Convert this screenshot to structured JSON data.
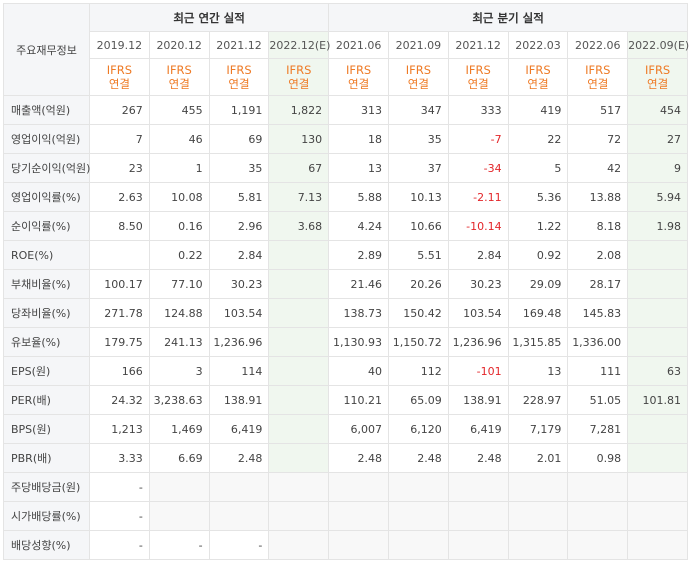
{
  "table": {
    "label_header": "주요재무정보",
    "groups": [
      {
        "label": "최근 연간 실적"
      },
      {
        "label": "최근 분기 실적"
      }
    ],
    "periods": [
      "2019.12",
      "2020.12",
      "2021.12",
      "2022.12(E)",
      "2021.06",
      "2021.09",
      "2021.12",
      "2022.03",
      "2022.06",
      "2022.09(E)"
    ],
    "ifrs_line1": "IFRS",
    "ifrs_line2": "연결",
    "rows": [
      {
        "label": "매출액(억원)",
        "values": [
          "267",
          "455",
          "1,191",
          "1,822",
          "313",
          "347",
          "333",
          "419",
          "517",
          "454"
        ]
      },
      {
        "label": "영업이익(억원)",
        "values": [
          "7",
          "46",
          "69",
          "130",
          "18",
          "35",
          "-7",
          "22",
          "72",
          "27"
        ]
      },
      {
        "label": "당기순이익(억원)",
        "values": [
          "23",
          "1",
          "35",
          "67",
          "13",
          "37",
          "-34",
          "5",
          "42",
          "9"
        ]
      },
      {
        "label": "영업이익률(%)",
        "values": [
          "2.63",
          "10.08",
          "5.81",
          "7.13",
          "5.88",
          "10.13",
          "-2.11",
          "5.36",
          "13.88",
          "5.94"
        ]
      },
      {
        "label": "순이익률(%)",
        "values": [
          "8.50",
          "0.16",
          "2.96",
          "3.68",
          "4.24",
          "10.66",
          "-10.14",
          "1.22",
          "8.18",
          "1.98"
        ]
      },
      {
        "label": "ROE(%)",
        "values": [
          "",
          "0.22",
          "2.84",
          "",
          "2.89",
          "5.51",
          "2.84",
          "0.92",
          "2.08",
          ""
        ]
      },
      {
        "label": "부채비율(%)",
        "values": [
          "100.17",
          "77.10",
          "30.23",
          "",
          "21.46",
          "20.26",
          "30.23",
          "29.09",
          "28.17",
          ""
        ]
      },
      {
        "label": "당좌비율(%)",
        "values": [
          "271.78",
          "124.88",
          "103.54",
          "",
          "138.73",
          "150.42",
          "103.54",
          "169.48",
          "145.83",
          ""
        ]
      },
      {
        "label": "유보율(%)",
        "values": [
          "179.75",
          "241.13",
          "1,236.96",
          "",
          "1,130.93",
          "1,150.72",
          "1,236.96",
          "1,315.85",
          "1,336.00",
          ""
        ]
      },
      {
        "label": "EPS(원)",
        "values": [
          "166",
          "3",
          "114",
          "",
          "40",
          "112",
          "-101",
          "13",
          "111",
          "63"
        ]
      },
      {
        "label": "PER(배)",
        "values": [
          "24.32",
          "3,238.63",
          "138.91",
          "",
          "110.21",
          "65.09",
          "138.91",
          "228.97",
          "51.05",
          "101.81"
        ]
      },
      {
        "label": "BPS(원)",
        "values": [
          "1,213",
          "1,469",
          "6,419",
          "",
          "6,007",
          "6,120",
          "6,419",
          "7,179",
          "7,281",
          ""
        ]
      },
      {
        "label": "PBR(배)",
        "values": [
          "3.33",
          "6.69",
          "2.48",
          "",
          "2.48",
          "2.48",
          "2.48",
          "2.01",
          "0.98",
          ""
        ]
      },
      {
        "label": "주당배당금(원)",
        "values": [
          "-",
          "",
          "",
          "",
          "",
          "",
          "",
          "",
          "",
          ""
        ]
      },
      {
        "label": "시가배당률(%)",
        "values": [
          "-",
          "",
          "",
          "",
          "",
          "",
          "",
          "",
          "",
          ""
        ]
      },
      {
        "label": "배당성향(%)",
        "values": [
          "-",
          "-",
          "-",
          "",
          "",
          "",
          "",
          "",
          "",
          ""
        ]
      }
    ]
  },
  "colors": {
    "header_bg": "#f5f6f8",
    "estimate_bg": "#f0f7ef",
    "ifrs_text": "#ee7a25",
    "negative_text": "#e3262a",
    "border": "#e4e4e4"
  }
}
